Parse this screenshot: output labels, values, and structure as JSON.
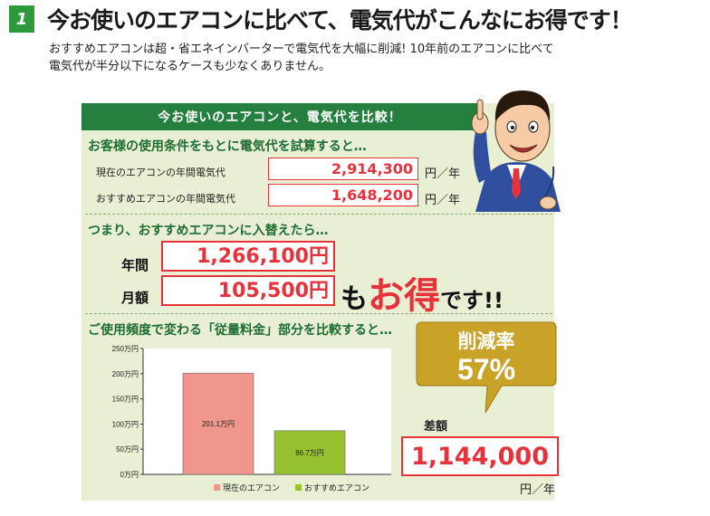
{
  "header": {
    "badge_number": "1",
    "title": "今お使いのエアコンに比べて、電気代がこんなにお得です！",
    "intro_line1": "おすすめエアコンは超・省エネインバーターで電気代を大幅に削減! 10年前のエアコンに比べて",
    "intro_line2": "電気代が半分以下になるケースも少なくありません。"
  },
  "panel": {
    "heading": "今お使いのエアコンと、電気代を比較！",
    "section1_title": "お客様の使用条件をもとに電気代を試算すると…",
    "rows": [
      {
        "label": "現在のエアコンの年間電気代",
        "value": "2,914,300",
        "unit": "円／年"
      },
      {
        "label": "おすすめエアコンの年間電気代",
        "value": "1,648,200",
        "unit": "円／年"
      }
    ],
    "section2_title": "つまり、おすすめエアコンに入替えたら…",
    "yearly_label": "年間",
    "yearly_value": "1,266,100円",
    "monthly_label": "月額",
    "monthly_value": "105,500円",
    "otoku_mo": "も",
    "otoku_big": "お得",
    "otoku_desu": "です!!",
    "section3_title": "ご使用頻度で変わる「従量料金」部分を比較すると…"
  },
  "callout": {
    "title": "削減率",
    "value": "57%"
  },
  "difference": {
    "label": "差額",
    "value": "1,144,000",
    "unit": "円／年"
  },
  "colors": {
    "green_dark": "#257f3e",
    "panel_bg": "#e9efd3",
    "red": "#e7323c",
    "bar_current": "#f0968c",
    "bar_recommended": "#96c22f",
    "callout_gold": "#c9a328"
  },
  "chart_data": {
    "type": "bar",
    "categories": [
      "現在のエアコン",
      "おすすめエアコン"
    ],
    "values": [
      201.1,
      86.7
    ],
    "value_labels": [
      "201.1万円",
      "86.7万円"
    ],
    "ytick_labels": [
      "250万円",
      "200万円",
      "150万円",
      "100万円",
      "50万円",
      "0万円"
    ],
    "ylim": [
      0,
      250
    ],
    "legend": [
      "現在のエアコン",
      "おすすめエアコン"
    ],
    "legend_position": "bottom",
    "grid": false
  }
}
